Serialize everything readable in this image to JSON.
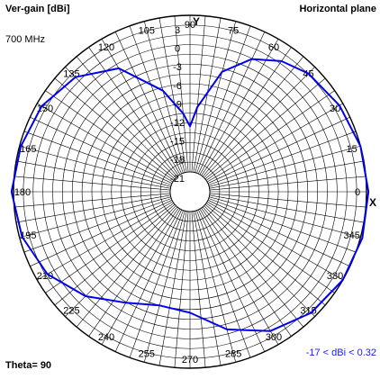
{
  "chart_data": {
    "type": "polar-line",
    "title": "Ver-gain [dBi]",
    "plane_label": "Horizontal plane",
    "frequency": "700 MHz",
    "theta_label": "Theta= 90",
    "range_label": "-17 < dBi < 0.32",
    "x_axis_label": "X",
    "y_axis_label": "Y",
    "radial_unit": "dBi",
    "radial_range": [
      -24,
      0
    ],
    "radial_tick_labels": [
      "3",
      "0",
      "-3",
      "-6",
      "-9",
      "-12",
      "-15",
      "-18",
      "-21"
    ],
    "angle_tick_labels": [
      "0",
      "15",
      "30",
      "45",
      "60",
      "75",
      "90",
      "105",
      "120",
      "135",
      "150",
      "165",
      "180",
      "195",
      "210",
      "225",
      "240",
      "255",
      "270",
      "285",
      "300",
      "315",
      "330",
      "345"
    ],
    "series": [
      {
        "color": "#0000ee",
        "points": [
          [
            0,
            0.3
          ],
          [
            15,
            0.0
          ],
          [
            30,
            -0.6
          ],
          [
            45,
            -1.4
          ],
          [
            55,
            -2.6
          ],
          [
            65,
            -4.6
          ],
          [
            75,
            -8.0
          ],
          [
            85,
            -14.0
          ],
          [
            90,
            -17.0
          ],
          [
            95,
            -15.0
          ],
          [
            105,
            -11.0
          ],
          [
            120,
            -5.2
          ],
          [
            135,
            -2.2
          ],
          [
            150,
            -0.8
          ],
          [
            165,
            -0.2
          ],
          [
            180,
            0.3
          ],
          [
            195,
            -0.4
          ],
          [
            210,
            -1.8
          ],
          [
            225,
            -4.4
          ],
          [
            240,
            -7.4
          ],
          [
            255,
            -9.0
          ],
          [
            270,
            -8.5
          ],
          [
            285,
            -5.2
          ],
          [
            300,
            -2.4
          ],
          [
            315,
            -0.8
          ],
          [
            330,
            0.0
          ],
          [
            345,
            0.3
          ],
          [
            360,
            0.3
          ]
        ]
      }
    ]
  }
}
